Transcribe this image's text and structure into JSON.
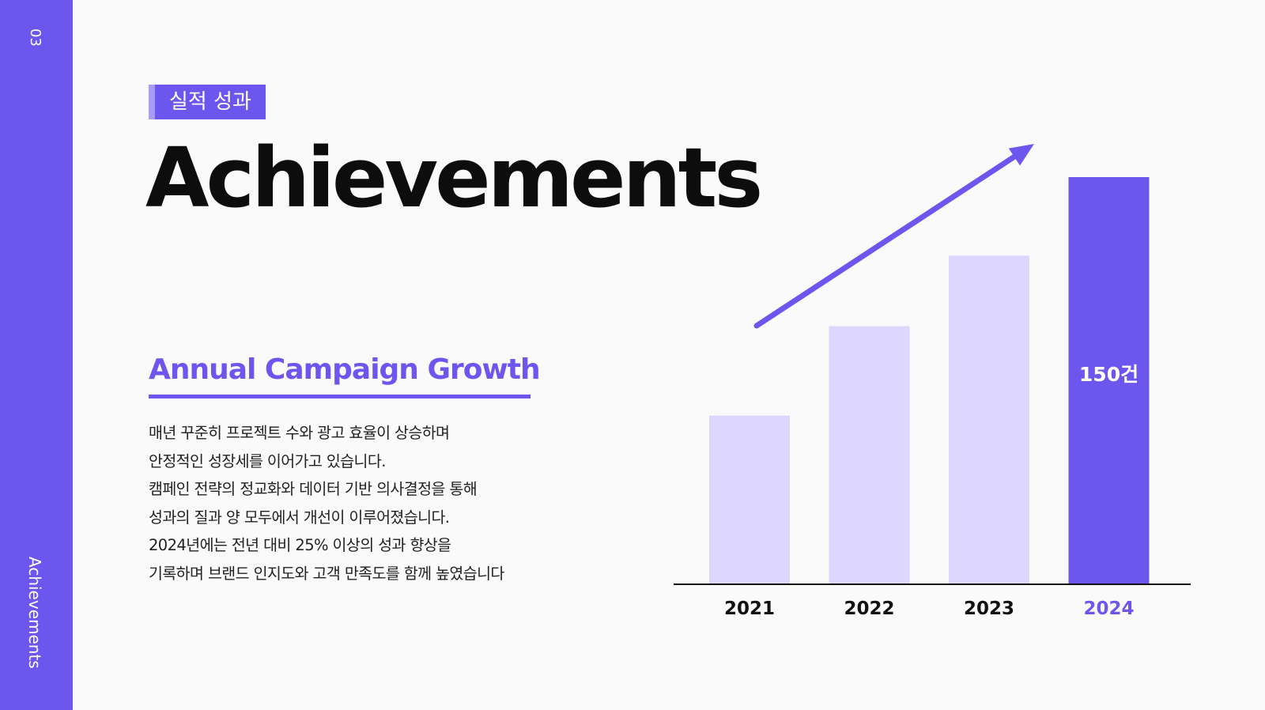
{
  "sidebar": {
    "page_number": "03",
    "label": "Achievements"
  },
  "badge": {
    "label": "실적 성과"
  },
  "title": "Achievements",
  "subtitle": "Annual Campaign Growth",
  "description": [
    "매년 꾸준히 프로젝트 수와 광고 효율이 상승하며",
    "안정적인 성장세를 이어가고 있습니다.",
    "캠페인 전략의 정교화와 데이터 기반 의사결정을 통해",
    "성과의 질과 양 모두에서 개선이 이루어졌습니다.",
    "2024년에는 전년 대비 25% 이상의 성과 향상을",
    "기록하며 브랜드 인지도와 고객 만족도를 함께 높였습니다"
  ],
  "colors": {
    "accent": "#6c56ee",
    "bar_light": "#ddd6fe",
    "bar_highlight": "#6c56ee",
    "axis": "#111111"
  },
  "chart_data": {
    "type": "bar",
    "categories": [
      "2021",
      "2022",
      "2023",
      "2024"
    ],
    "values": [
      62,
      95,
      121,
      150
    ],
    "highlight_index": 3,
    "data_labels": [
      "",
      "",
      "",
      "150건"
    ],
    "ylim": [
      0,
      150
    ],
    "grid": false,
    "trend_arrow": true
  }
}
